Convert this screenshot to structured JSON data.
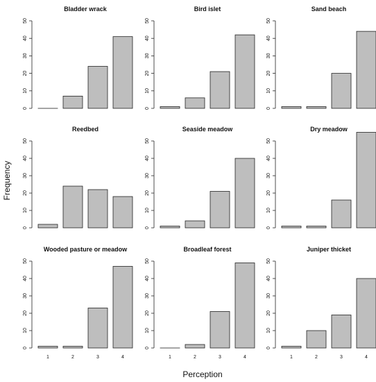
{
  "figure": {
    "xlabel": "Perception",
    "ylabel": "Frequency"
  },
  "chart_data": [
    {
      "type": "bar",
      "title": "Bladder wrack",
      "categories": [
        "1",
        "2",
        "3",
        "4"
      ],
      "values": [
        0,
        7,
        24,
        41
      ],
      "ylim": [
        0,
        50
      ],
      "yticks": [
        0,
        10,
        20,
        30,
        40,
        50
      ],
      "xticks": []
    },
    {
      "type": "bar",
      "title": "Bird islet",
      "categories": [
        "1",
        "2",
        "3",
        "4"
      ],
      "values": [
        1,
        6,
        21,
        42
      ],
      "ylim": [
        0,
        50
      ],
      "yticks": [
        0,
        10,
        20,
        30,
        40,
        50
      ],
      "xticks": []
    },
    {
      "type": "bar",
      "title": "Sand beach",
      "categories": [
        "1",
        "2",
        "3",
        "4"
      ],
      "values": [
        1,
        1,
        20,
        44
      ],
      "ylim": [
        0,
        50
      ],
      "yticks": [
        0,
        10,
        20,
        30,
        40,
        50
      ],
      "xticks": []
    },
    {
      "type": "bar",
      "title": "Reedbed",
      "categories": [
        "1",
        "2",
        "3",
        "4"
      ],
      "values": [
        2,
        24,
        22,
        18
      ],
      "ylim": [
        0,
        50
      ],
      "yticks": [
        0,
        10,
        20,
        30,
        40,
        50
      ],
      "xticks": []
    },
    {
      "type": "bar",
      "title": "Seaside meadow",
      "categories": [
        "1",
        "2",
        "3",
        "4"
      ],
      "values": [
        1,
        4,
        21,
        40
      ],
      "ylim": [
        0,
        50
      ],
      "yticks": [
        0,
        10,
        20,
        30,
        40,
        50
      ],
      "xticks": []
    },
    {
      "type": "bar",
      "title": "Dry meadow",
      "categories": [
        "1",
        "2",
        "3",
        "4"
      ],
      "values": [
        1,
        1,
        16,
        55
      ],
      "ylim": [
        0,
        50
      ],
      "yticks": [
        0,
        10,
        20,
        30,
        40,
        50
      ],
      "xticks": []
    },
    {
      "type": "bar",
      "title": "Wooded pasture or meadow",
      "categories": [
        "1",
        "2",
        "3",
        "4"
      ],
      "values": [
        1,
        1,
        23,
        47
      ],
      "ylim": [
        0,
        50
      ],
      "yticks": [
        0,
        10,
        20,
        30,
        40,
        50
      ],
      "xticks": [
        "1",
        "2",
        "3",
        "4"
      ]
    },
    {
      "type": "bar",
      "title": "Broadleaf forest",
      "categories": [
        "1",
        "2",
        "3",
        "4"
      ],
      "values": [
        0,
        2,
        21,
        49
      ],
      "ylim": [
        0,
        50
      ],
      "yticks": [
        0,
        10,
        20,
        30,
        40,
        50
      ],
      "xticks": [
        "1",
        "2",
        "3",
        "4"
      ]
    },
    {
      "type": "bar",
      "title": "Juniper thicket",
      "categories": [
        "1",
        "2",
        "3",
        "4"
      ],
      "values": [
        1,
        10,
        19,
        40
      ],
      "ylim": [
        0,
        50
      ],
      "yticks": [
        0,
        10,
        20,
        30,
        40,
        50
      ],
      "xticks": [
        "1",
        "2",
        "3",
        "4"
      ]
    }
  ]
}
